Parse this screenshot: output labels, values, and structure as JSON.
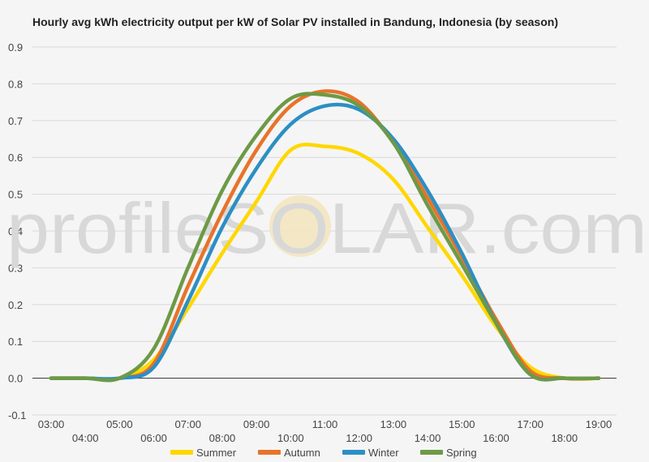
{
  "chart_data": {
    "type": "line",
    "title": "Hourly avg kWh electricity output per kW of Solar PV installed in Bandung, Indonesia (by season)",
    "xlabel": "",
    "ylabel": "",
    "ylim": [
      -0.1,
      0.9
    ],
    "yticks": [
      "-0.1",
      "0.0",
      "0.1",
      "0.2",
      "0.3",
      "0.4",
      "0.5",
      "0.6",
      "0.7",
      "0.8",
      "0.9"
    ],
    "x": [
      "03:00",
      "04:00",
      "05:00",
      "06:00",
      "07:00",
      "08:00",
      "09:00",
      "10:00",
      "11:00",
      "12:00",
      "13:00",
      "14:00",
      "15:00",
      "16:00",
      "17:00",
      "18:00",
      "19:00"
    ],
    "grid": true,
    "legend": "bottom",
    "series": [
      {
        "name": "Summer",
        "color": "#FFD700",
        "values": [
          0.0,
          0.0,
          0.0,
          0.05,
          0.19,
          0.34,
          0.48,
          0.62,
          0.63,
          0.61,
          0.54,
          0.41,
          0.28,
          0.14,
          0.03,
          0.0,
          0.0
        ]
      },
      {
        "name": "Autumn",
        "color": "#E8732A",
        "values": [
          0.0,
          0.0,
          0.0,
          0.04,
          0.25,
          0.45,
          0.62,
          0.74,
          0.78,
          0.75,
          0.64,
          0.49,
          0.33,
          0.16,
          0.02,
          0.0,
          0.0
        ]
      },
      {
        "name": "Winter",
        "color": "#2C8FC4",
        "values": [
          0.0,
          0.0,
          0.0,
          0.03,
          0.21,
          0.41,
          0.57,
          0.69,
          0.74,
          0.73,
          0.65,
          0.51,
          0.34,
          0.15,
          0.01,
          0.0,
          0.0
        ]
      },
      {
        "name": "Spring",
        "color": "#6C9A46",
        "values": [
          0.0,
          0.0,
          0.0,
          0.08,
          0.3,
          0.51,
          0.66,
          0.76,
          0.77,
          0.74,
          0.64,
          0.47,
          0.31,
          0.15,
          0.01,
          0.0,
          0.0
        ]
      }
    ]
  },
  "watermark": {
    "text": "profileSOLAR.com"
  }
}
